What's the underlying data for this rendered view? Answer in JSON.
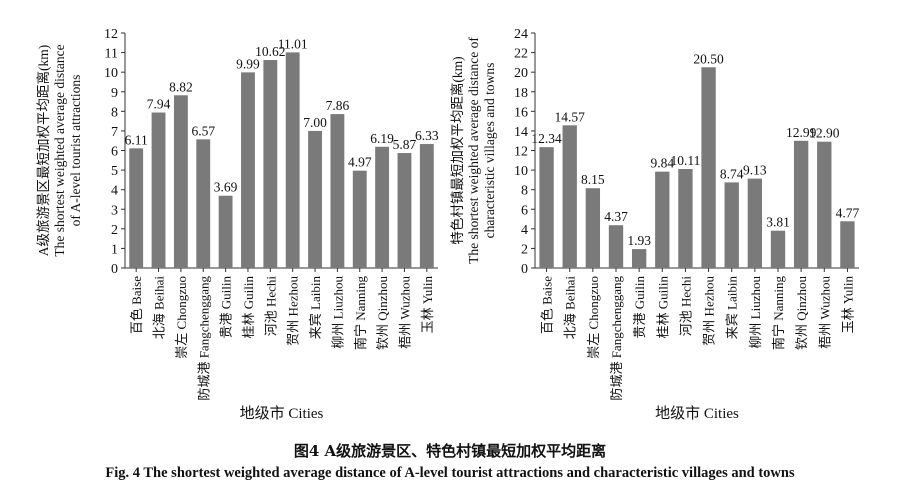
{
  "figure": {
    "caption_cn": "图4 A级旅游景区、特色村镇最短加权平均距离",
    "caption_en": "Fig. 4 The shortest weighted average distance of A-level tourist attractions and characteristic villages and towns"
  },
  "chart_data": [
    {
      "type": "bar",
      "ylabel_lines": [
        "A级旅游景区最短加权平均距离(km)",
        "The shortest weighted average distance",
        "of A-level tourist attractions"
      ],
      "xlabel": "地级市 Cities",
      "categories": [
        "百色 Baise",
        "北海 Beihai",
        "崇左 Chongzuo",
        "防城港 Fangchenggang",
        "贵港 Guilin",
        "桂林 Guilin",
        "河池 Hechi",
        "贺州 Hezhou",
        "来宾 Laibin",
        "柳州 Liuzhou",
        "南宁 Nanning",
        "钦州 Qinzhou",
        "梧州 Wuzhou",
        "玉林 Yulin"
      ],
      "values": [
        6.11,
        7.94,
        8.82,
        6.57,
        3.69,
        9.99,
        10.62,
        11.01,
        7.0,
        7.86,
        4.97,
        6.19,
        5.87,
        6.33
      ],
      "value_labels": [
        "6.11",
        "7.94",
        "8.82",
        "6.57",
        "3.69",
        "9.99",
        "10.62",
        "11.01",
        "7.00",
        "7.86",
        "4.97",
        "6.19",
        "5.87",
        "6.33"
      ],
      "ylim": [
        0,
        12
      ],
      "yticks": [
        "0",
        "1",
        "2",
        "3",
        "4",
        "5",
        "6",
        "7",
        "8",
        "9",
        "10",
        "11",
        "12"
      ],
      "bar_color": "#7a7a7a"
    },
    {
      "type": "bar",
      "ylabel_lines": [
        "特色村镇最短加权平均距离(km)",
        "The shortest weighted average distance of",
        "characteristic villages and towns"
      ],
      "xlabel": "地级市 Cities",
      "categories": [
        "百色 Baise",
        "北海 Beihai",
        "崇左 Chongzuo",
        "防城港 Fangchenggang",
        "贵港 Guilin",
        "桂林 Guilin",
        "河池 Hechi",
        "贺州 Hezhou",
        "来宾 Laibin",
        "柳州 Liuzhou",
        "南宁 Nanning",
        "钦州 Qinzhou",
        "梧州 Wuzhou",
        "玉林 Yulin"
      ],
      "values": [
        12.34,
        14.57,
        8.15,
        4.37,
        1.93,
        9.84,
        10.11,
        20.5,
        8.74,
        9.13,
        3.81,
        12.99,
        12.9,
        4.77
      ],
      "value_labels": [
        "12.34",
        "14.57",
        "8.15",
        "4.37",
        "1.93",
        "9.84",
        "10.11",
        "20.50",
        "8.74",
        "9.13",
        "3.81",
        "12.99",
        "12.90",
        "4.77"
      ],
      "ylim": [
        0,
        24
      ],
      "yticks": [
        "0",
        "2",
        "4",
        "6",
        "8",
        "10",
        "12",
        "14",
        "16",
        "18",
        "20",
        "22",
        "24"
      ],
      "bar_color": "#7a7a7a"
    }
  ]
}
